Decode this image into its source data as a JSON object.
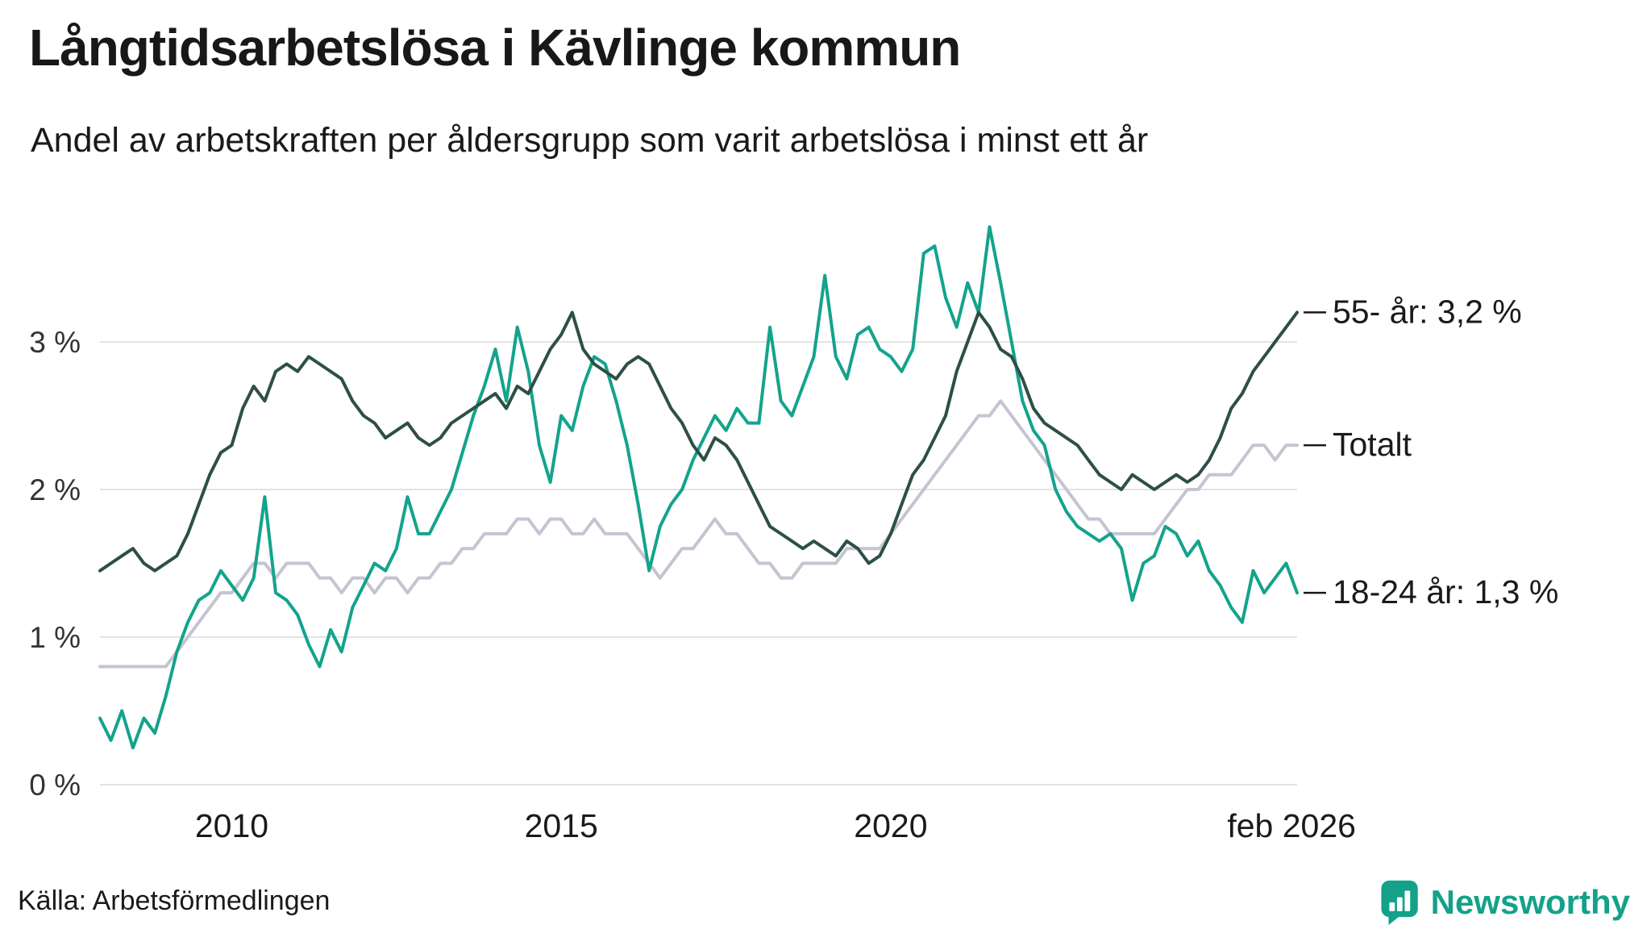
{
  "header": {
    "title": "Långtidsarbetslösa i Kävlinge kommun",
    "subtitle": "Andel av arbetskraften per åldersgrupp som varit arbetslösa i minst ett år"
  },
  "footer": {
    "source": "Källa: Arbetsförmedlingen",
    "brand": "Newsworthy"
  },
  "icons": {
    "brand_logo": "newsworthy-logo-icon"
  },
  "colors": {
    "background": "#ffffff",
    "grid": "#e3e3e3",
    "text": "#1a1a1a",
    "axis_text": "#333333",
    "brand": "#13a289",
    "series_55": "#2d4f46",
    "series_total": "#c5c4d2",
    "series_1824": "#14a38c"
  },
  "chart_data": {
    "type": "line",
    "title": "Långtidsarbetslösa i Kävlinge kommun",
    "subtitle": "Andel av arbetskraften per åldersgrupp som varit arbetslösa i minst ett år",
    "xlabel": "",
    "ylabel": "",
    "grid": "horizontal",
    "legend_position": "right-annotations",
    "x_start": 2008.0,
    "x_step_years": 0.1666667,
    "xlim": [
      2008.0,
      2026.1667
    ],
    "ylim": [
      0,
      3.9
    ],
    "y_ticks": [
      {
        "value": 0,
        "label": "0 %"
      },
      {
        "value": 1,
        "label": "1 %"
      },
      {
        "value": 2,
        "label": "2 %"
      },
      {
        "value": 3,
        "label": "3 %"
      }
    ],
    "x_ticks": [
      {
        "value": 2010,
        "label": "2010"
      },
      {
        "value": 2015,
        "label": "2015"
      },
      {
        "value": 2020,
        "label": "2020"
      },
      {
        "value": 2026.083,
        "label": "feb 2026"
      }
    ],
    "draw_order": [
      1,
      2,
      0
    ],
    "series": [
      {
        "name": "55- år",
        "label": "55- år: 3,2 %",
        "end_value": 3.2,
        "color": "#2d4f46",
        "width": 4,
        "values": [
          1.45,
          1.5,
          1.55,
          1.6,
          1.5,
          1.45,
          1.5,
          1.55,
          1.7,
          1.9,
          2.1,
          2.25,
          2.3,
          2.55,
          2.7,
          2.6,
          2.8,
          2.85,
          2.8,
          2.9,
          2.85,
          2.8,
          2.75,
          2.6,
          2.5,
          2.45,
          2.35,
          2.4,
          2.45,
          2.35,
          2.3,
          2.35,
          2.45,
          2.5,
          2.55,
          2.6,
          2.65,
          2.55,
          2.7,
          2.65,
          2.8,
          2.95,
          3.05,
          3.2,
          2.95,
          2.85,
          2.8,
          2.75,
          2.85,
          2.9,
          2.85,
          2.7,
          2.55,
          2.45,
          2.3,
          2.2,
          2.35,
          2.3,
          2.2,
          2.05,
          1.9,
          1.75,
          1.7,
          1.65,
          1.6,
          1.65,
          1.6,
          1.55,
          1.65,
          1.6,
          1.5,
          1.55,
          1.7,
          1.9,
          2.1,
          2.2,
          2.35,
          2.5,
          2.8,
          3.0,
          3.2,
          3.1,
          2.95,
          2.9,
          2.75,
          2.55,
          2.45,
          2.4,
          2.35,
          2.3,
          2.2,
          2.1,
          2.05,
          2.0,
          2.1,
          2.05,
          2.0,
          2.05,
          2.1,
          2.05,
          2.1,
          2.2,
          2.35,
          2.55,
          2.65,
          2.8,
          2.9,
          3.0,
          3.1,
          3.2
        ]
      },
      {
        "name": "Totalt",
        "label": "Totalt",
        "end_value": 2.3,
        "color": "#c5c4d2",
        "width": 4,
        "values": [
          0.8,
          0.8,
          0.8,
          0.8,
          0.8,
          0.8,
          0.8,
          0.9,
          1.0,
          1.1,
          1.2,
          1.3,
          1.3,
          1.4,
          1.5,
          1.5,
          1.4,
          1.5,
          1.5,
          1.5,
          1.4,
          1.4,
          1.3,
          1.4,
          1.4,
          1.3,
          1.4,
          1.4,
          1.3,
          1.4,
          1.4,
          1.5,
          1.5,
          1.6,
          1.6,
          1.7,
          1.7,
          1.7,
          1.8,
          1.8,
          1.7,
          1.8,
          1.8,
          1.7,
          1.7,
          1.8,
          1.7,
          1.7,
          1.7,
          1.6,
          1.5,
          1.4,
          1.5,
          1.6,
          1.6,
          1.7,
          1.8,
          1.7,
          1.7,
          1.6,
          1.5,
          1.5,
          1.4,
          1.4,
          1.5,
          1.5,
          1.5,
          1.5,
          1.6,
          1.6,
          1.6,
          1.6,
          1.7,
          1.8,
          1.9,
          2.0,
          2.1,
          2.2,
          2.3,
          2.4,
          2.5,
          2.5,
          2.6,
          2.5,
          2.4,
          2.3,
          2.2,
          2.1,
          2.0,
          1.9,
          1.8,
          1.8,
          1.7,
          1.7,
          1.7,
          1.7,
          1.7,
          1.8,
          1.9,
          2.0,
          2.0,
          2.1,
          2.1,
          2.1,
          2.2,
          2.3,
          2.3,
          2.2,
          2.3,
          2.3
        ]
      },
      {
        "name": "18-24 år",
        "label": "18-24 år: 1,3 %",
        "end_value": 1.3,
        "color": "#14a38c",
        "width": 4,
        "values": [
          0.45,
          0.3,
          0.5,
          0.25,
          0.45,
          0.35,
          0.6,
          0.9,
          1.1,
          1.25,
          1.3,
          1.45,
          1.35,
          1.25,
          1.4,
          1.95,
          1.3,
          1.25,
          1.15,
          0.95,
          0.8,
          1.05,
          0.9,
          1.2,
          1.35,
          1.5,
          1.45,
          1.6,
          1.95,
          1.7,
          1.7,
          1.85,
          2.0,
          2.25,
          2.5,
          2.7,
          2.95,
          2.6,
          3.1,
          2.8,
          2.3,
          2.05,
          2.5,
          2.4,
          2.7,
          2.9,
          2.85,
          2.6,
          2.3,
          1.9,
          1.45,
          1.75,
          1.9,
          2.0,
          2.2,
          2.35,
          2.5,
          2.4,
          2.55,
          2.45,
          2.45,
          3.1,
          2.6,
          2.5,
          2.7,
          2.9,
          3.45,
          2.9,
          2.75,
          3.05,
          3.1,
          2.95,
          2.9,
          2.8,
          2.95,
          3.6,
          3.65,
          3.3,
          3.1,
          3.4,
          3.2,
          3.78,
          3.4,
          3.0,
          2.6,
          2.4,
          2.3,
          2.0,
          1.85,
          1.75,
          1.7,
          1.65,
          1.7,
          1.6,
          1.25,
          1.5,
          1.55,
          1.75,
          1.7,
          1.55,
          1.65,
          1.45,
          1.35,
          1.2,
          1.1,
          1.45,
          1.3,
          1.4,
          1.5,
          1.3
        ]
      }
    ]
  }
}
